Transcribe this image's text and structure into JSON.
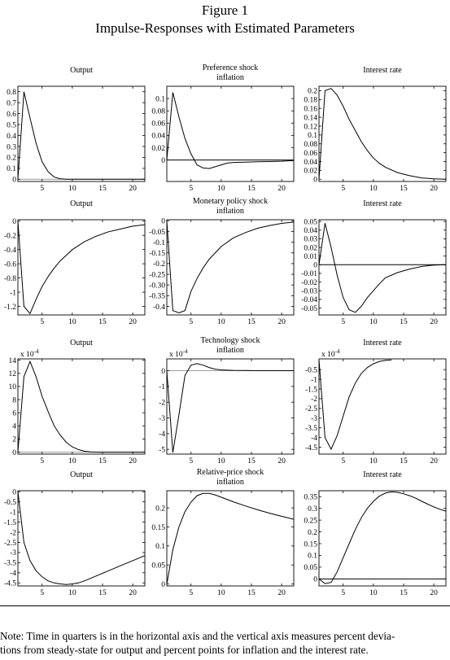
{
  "figure": {
    "title_line1": "Figure 1",
    "title_line2": "Impulse-Responses with Estimated Parameters"
  },
  "note": {
    "line1": "Note: Time in quarters is in the horizontal axis and the vertical axis measures percent devia-",
    "line2": "tions from steady-state for output and percent points for inflation and the interest rate."
  },
  "chart_data": [
    {
      "type": "line",
      "title": "Output",
      "xlim": [
        1,
        22
      ],
      "ylim": [
        -0.02,
        0.85
      ],
      "xticks": [
        5,
        10,
        15,
        20
      ],
      "yticks": [
        0,
        0.1,
        0.2,
        0.3,
        0.4,
        0.5,
        0.6,
        0.7,
        0.8
      ],
      "ytick_labels": [
        "0",
        "0.1",
        "0.2",
        "0.3",
        "0.4",
        "0.5",
        "0.6",
        "0.7",
        "0.8"
      ],
      "zero_line": true,
      "zero_line_color": "#9a9a9a",
      "x": [
        1,
        2,
        3,
        4,
        5,
        6,
        7,
        8,
        9,
        10,
        12,
        14,
        16,
        18,
        20,
        22
      ],
      "y": [
        0,
        0.8,
        0.56,
        0.33,
        0.16,
        0.07,
        0.02,
        0.005,
        0.001,
        0,
        0,
        0,
        0,
        0,
        0,
        0
      ]
    },
    {
      "type": "line",
      "title": "Preference shock\ninflation",
      "xlim": [
        1,
        22
      ],
      "ylim": [
        -0.035,
        0.12
      ],
      "xticks": [
        5,
        10,
        15,
        20
      ],
      "yticks": [
        0,
        0.02,
        0.04,
        0.06,
        0.08,
        0.1
      ],
      "ytick_labels": [
        "0",
        "0.02",
        "0.04",
        "0.06",
        "0.08",
        "0.1"
      ],
      "zero_line": true,
      "zero_line_color": "#000000",
      "x": [
        1,
        2,
        3,
        4,
        5,
        6,
        7,
        8,
        9,
        10,
        11,
        12,
        14,
        16,
        18,
        20,
        22
      ],
      "y": [
        0,
        0.11,
        0.07,
        0.035,
        0.01,
        -0.008,
        -0.013,
        -0.014,
        -0.011,
        -0.008,
        -0.005,
        -0.004,
        -0.0035,
        -0.003,
        -0.0025,
        -0.002,
        -0.001
      ]
    },
    {
      "type": "line",
      "title": "Interest rate",
      "xlim": [
        1,
        22
      ],
      "ylim": [
        -0.005,
        0.21
      ],
      "xticks": [
        5,
        10,
        15,
        20
      ],
      "yticks": [
        0,
        0.02,
        0.04,
        0.06,
        0.08,
        0.1,
        0.12,
        0.14,
        0.16,
        0.18,
        0.2
      ],
      "ytick_labels": [
        "0",
        "0.02",
        "0.04",
        "0.06",
        "0.08",
        "0.1",
        "0.12",
        "0.14",
        "0.16",
        "0.18",
        "0.2"
      ],
      "zero_line": false,
      "x": [
        1,
        2,
        3,
        4,
        5,
        6,
        7,
        8,
        9,
        10,
        11,
        12,
        14,
        16,
        18,
        20,
        22
      ],
      "y": [
        0,
        0.2,
        0.205,
        0.19,
        0.165,
        0.135,
        0.11,
        0.085,
        0.065,
        0.048,
        0.036,
        0.027,
        0.015,
        0.008,
        0.003,
        0.0008,
        0
      ]
    },
    {
      "type": "line",
      "title": "Output",
      "xlim": [
        1,
        22
      ],
      "ylim": [
        -1.32,
        0.02
      ],
      "xticks": [
        5,
        10,
        15,
        20
      ],
      "yticks": [
        0,
        -0.2,
        -0.4,
        -0.6,
        -0.8,
        -1,
        -1.2
      ],
      "ytick_labels": [
        "0",
        "-0.2",
        "-0.4",
        "-0.6",
        "-0.8",
        "-1",
        "-1.2"
      ],
      "zero_line": false,
      "x": [
        1,
        2,
        3,
        4,
        5,
        6,
        7,
        8,
        10,
        12,
        14,
        16,
        18,
        20,
        22
      ],
      "y": [
        0,
        -1.2,
        -1.3,
        -1.1,
        -0.92,
        -0.78,
        -0.66,
        -0.56,
        -0.4,
        -0.29,
        -0.21,
        -0.15,
        -0.11,
        -0.07,
        -0.05
      ]
    },
    {
      "type": "line",
      "title": "Monetary policy shock\ninflation",
      "xlim": [
        1,
        22
      ],
      "ylim": [
        -0.44,
        0.005
      ],
      "xticks": [
        5,
        10,
        15,
        20
      ],
      "yticks": [
        0,
        -0.05,
        -0.1,
        -0.15,
        -0.2,
        -0.25,
        -0.3,
        -0.35,
        -0.4
      ],
      "ytick_labels": [
        "0",
        "-0.05",
        "-0.1",
        "-0.15",
        "-0.2",
        "-0.25",
        "-0.30",
        "-0.35",
        "-0.4"
      ],
      "zero_line": false,
      "x": [
        1,
        2,
        3,
        4,
        5,
        6,
        7,
        8,
        10,
        12,
        14,
        16,
        18,
        20,
        22
      ],
      "y": [
        0,
        -0.42,
        -0.43,
        -0.42,
        -0.33,
        -0.27,
        -0.22,
        -0.18,
        -0.12,
        -0.08,
        -0.055,
        -0.035,
        -0.022,
        -0.012,
        -0.006
      ]
    },
    {
      "type": "line",
      "title": "Interest rate",
      "xlim": [
        1,
        22
      ],
      "ylim": [
        -0.058,
        0.052
      ],
      "xticks": [
        5,
        10,
        15,
        20
      ],
      "yticks": [
        0.05,
        0.04,
        0.03,
        0.02,
        0.01,
        0,
        -0.01,
        -0.02,
        -0.03,
        -0.04,
        -0.05
      ],
      "ytick_labels": [
        "0.05",
        "0.04",
        "0.03",
        "0.02",
        "0.01",
        "0",
        "-0.01",
        "-0.02",
        "-0.03",
        "-0.04",
        "-0.05"
      ],
      "zero_line": true,
      "zero_line_color": "#000000",
      "x": [
        1,
        2,
        3,
        4,
        5,
        6,
        7,
        8,
        9,
        10,
        11,
        12,
        14,
        16,
        18,
        20,
        22
      ],
      "y": [
        0,
        0.048,
        0.02,
        -0.012,
        -0.038,
        -0.052,
        -0.055,
        -0.048,
        -0.038,
        -0.03,
        -0.022,
        -0.015,
        -0.009,
        -0.005,
        -0.002,
        -0.0005,
        0
      ]
    },
    {
      "type": "line",
      "title": "Output",
      "exponent": "x 10",
      "exponent_power": "-4",
      "xlim": [
        1,
        22
      ],
      "ylim": [
        -0.3,
        14.2
      ],
      "xticks": [
        5,
        10,
        15,
        20
      ],
      "yticks": [
        0,
        2,
        4,
        6,
        8,
        10,
        12,
        14
      ],
      "ytick_labels": [
        "0",
        "2",
        "4",
        "6",
        "8",
        "10",
        "12",
        "14"
      ],
      "zero_line": true,
      "zero_line_color": "#9a9a9a",
      "x": [
        1,
        2,
        3,
        4,
        5,
        6,
        7,
        8,
        9,
        10,
        11,
        12,
        13,
        14,
        16,
        18,
        20,
        22
      ],
      "y": [
        0,
        11.5,
        13.8,
        11.5,
        8.5,
        6.2,
        4,
        2.6,
        1.5,
        0.8,
        0.4,
        0.15,
        0.05,
        0,
        0,
        0,
        0,
        0
      ]
    },
    {
      "type": "line",
      "title": "Technology shock\ninflation",
      "exponent": "x 10",
      "exponent_power": "-4",
      "xlim": [
        1,
        22
      ],
      "ylim": [
        -5.3,
        0.75
      ],
      "xticks": [
        5,
        10,
        15,
        20
      ],
      "yticks": [
        0,
        -1,
        -2,
        -3,
        -4,
        -5
      ],
      "ytick_labels": [
        "0",
        "-1",
        "-2",
        "-3",
        "-4",
        "-5"
      ],
      "zero_line": true,
      "zero_line_color": "#9a9a9a",
      "x": [
        1,
        2,
        3,
        4,
        5,
        6,
        7,
        8,
        9,
        10,
        12,
        14,
        16,
        18,
        20,
        22
      ],
      "y": [
        0,
        -5.2,
        -2.8,
        -0.3,
        0.35,
        0.45,
        0.35,
        0.2,
        0.1,
        0.05,
        0.02,
        0.01,
        0,
        0,
        0,
        0
      ]
    },
    {
      "type": "line",
      "title": "Interest rate",
      "exponent": "x 10",
      "exponent_power": "-4",
      "xlim": [
        1,
        22
      ],
      "ylim": [
        -4.85,
        0.05
      ],
      "xticks": [
        5,
        10,
        15,
        20
      ],
      "yticks": [
        -0.5,
        -1,
        -1.5,
        -2,
        -2.5,
        -3,
        -3.5,
        -4,
        -4.5
      ],
      "ytick_labels": [
        "-0.5",
        "-1",
        "-1.5",
        "-2",
        "-2.5",
        "-3",
        "-3.5",
        "-4",
        "-4.5"
      ],
      "zero_line": false,
      "x": [
        1,
        2,
        3,
        4,
        5,
        6,
        7,
        8,
        9,
        10,
        11,
        12,
        13
      ],
      "y": [
        0,
        -4.0,
        -4.6,
        -3.9,
        -2.9,
        -1.9,
        -1.2,
        -0.7,
        -0.4,
        -0.2,
        -0.08,
        -0.02,
        0
      ]
    },
    {
      "type": "line",
      "title": "Output",
      "xlim": [
        1,
        22
      ],
      "ylim": [
        -4.65,
        0.05
      ],
      "xticks": [
        5,
        10,
        15,
        20
      ],
      "yticks": [
        0,
        -0.5,
        -1,
        -1.5,
        -2,
        -2.5,
        -3,
        -3.5,
        -4,
        -4.5
      ],
      "ytick_labels": [
        "0",
        "-0.5",
        "-1",
        "-1.5",
        "-2",
        "-2.5",
        "-3",
        "-3.5",
        "-4",
        "-4.5"
      ],
      "zero_line": false,
      "x": [
        1,
        2,
        3,
        4,
        5,
        6,
        7,
        8,
        9,
        10,
        11,
        12,
        14,
        16,
        18,
        20,
        22
      ],
      "y": [
        0,
        -2.5,
        -3.4,
        -3.9,
        -4.2,
        -4.4,
        -4.5,
        -4.55,
        -4.58,
        -4.55,
        -4.5,
        -4.4,
        -4.15,
        -3.9,
        -3.65,
        -3.4,
        -3.15
      ]
    },
    {
      "type": "line",
      "title": "Relative-price shock\ninflation",
      "xlim": [
        1,
        22
      ],
      "ylim": [
        -0.005,
        0.245
      ],
      "xticks": [
        5,
        10,
        15,
        20
      ],
      "yticks": [
        0,
        0.05,
        0.1,
        0.15,
        0.2
      ],
      "ytick_labels": [
        "0",
        "0.05",
        "0.1",
        "0.15",
        "0.2"
      ],
      "zero_line": false,
      "x": [
        1,
        2,
        3,
        4,
        5,
        6,
        7,
        8,
        9,
        10,
        12,
        14,
        16,
        18,
        20,
        22
      ],
      "y": [
        0,
        0.09,
        0.15,
        0.19,
        0.215,
        0.232,
        0.238,
        0.238,
        0.234,
        0.228,
        0.216,
        0.205,
        0.195,
        0.186,
        0.178,
        0.17
      ]
    },
    {
      "type": "line",
      "title": "Interest rate",
      "xlim": [
        1,
        22
      ],
      "ylim": [
        -0.03,
        0.375
      ],
      "xticks": [
        5,
        10,
        15,
        20
      ],
      "yticks": [
        0,
        0.05,
        0.1,
        0.15,
        0.2,
        0.25,
        0.3,
        0.35
      ],
      "ytick_labels": [
        "0",
        "0.05",
        "0.1",
        "0.15",
        "0.2",
        "0.25",
        "0.3",
        "0.35"
      ],
      "zero_line": true,
      "zero_line_color": "#000000",
      "x": [
        1,
        2,
        3,
        4,
        5,
        6,
        7,
        8,
        9,
        10,
        11,
        12,
        13,
        14,
        15,
        16,
        17,
        18,
        19,
        20,
        21,
        22
      ],
      "y": [
        0,
        -0.02,
        -0.015,
        0.03,
        0.09,
        0.15,
        0.21,
        0.26,
        0.3,
        0.33,
        0.352,
        0.365,
        0.37,
        0.368,
        0.362,
        0.354,
        0.343,
        0.33,
        0.318,
        0.306,
        0.296,
        0.288
      ]
    }
  ]
}
